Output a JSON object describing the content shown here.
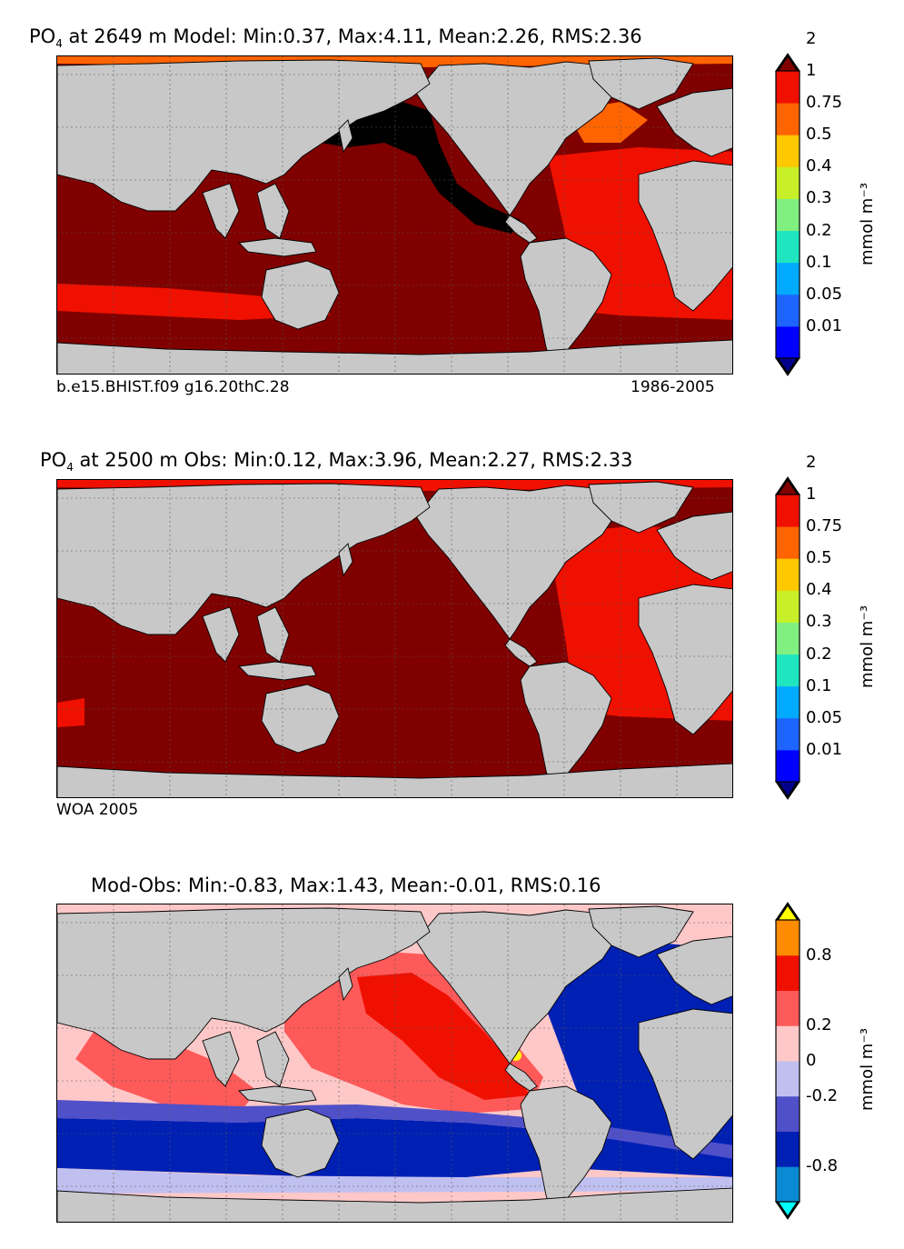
{
  "chart_data": [
    {
      "type": "heatmap",
      "title_prefix": "PO",
      "title_sub": "4",
      "title_rest": " at 2649 m Model: Min:0.37, Max:4.11, Mean:2.26, RMS:2.36",
      "stats": {
        "min": 0.37,
        "max": 4.11,
        "mean": 2.26,
        "rms": 2.36
      },
      "caption_left": "b.e15.BHIST.f09 g16.20thC.28",
      "caption_right": "1986-2005",
      "colorbar": {
        "levels": [
          "0.01",
          "0.05",
          "0.1",
          "0.2",
          "0.3",
          "0.4",
          "0.5",
          "0.75",
          "1",
          "2"
        ],
        "colors": [
          "#00008b",
          "#0000ff",
          "#1e64ff",
          "#00aaff",
          "#20e6c0",
          "#80f080",
          "#c8f028",
          "#ffc800",
          "#ff6400",
          "#f01000",
          "#800000"
        ],
        "unit": "mmol m⁻³"
      }
    },
    {
      "type": "heatmap",
      "title_prefix": "PO",
      "title_sub": "4",
      "title_rest": " at 2500 m Obs: Min:0.12, Max:3.96, Mean:2.27, RMS:2.33",
      "stats": {
        "min": 0.12,
        "max": 3.96,
        "mean": 2.27,
        "rms": 2.33
      },
      "caption_left": "WOA 2005",
      "caption_right": "",
      "colorbar": {
        "levels": [
          "0.01",
          "0.05",
          "0.1",
          "0.2",
          "0.3",
          "0.4",
          "0.5",
          "0.75",
          "1",
          "2"
        ],
        "colors": [
          "#00008b",
          "#0000ff",
          "#1e64ff",
          "#00aaff",
          "#20e6c0",
          "#80f080",
          "#c8f028",
          "#ffc800",
          "#ff6400",
          "#f01000",
          "#800000"
        ],
        "unit": "mmol m⁻³"
      }
    },
    {
      "type": "heatmap",
      "title_prefix": "",
      "title_sub": "",
      "title_rest": "Mod-Obs: Min:-0.83, Max:1.43, Mean:-0.01, RMS:0.16",
      "stats": {
        "min": -0.83,
        "max": 1.43,
        "mean": -0.01,
        "rms": 0.16
      },
      "caption_left": "",
      "caption_right": "",
      "colorbar": {
        "tick_labels": [
          "-0.8",
          "-0.2",
          "0",
          "0.2",
          "0.8"
        ],
        "colors": [
          "#00ffff",
          "#0a8ad2",
          "#0020b4",
          "#5050c8",
          "#c0c0f0",
          "#ffc8c8",
          "#ff5a5a",
          "#f01000",
          "#ff8c00",
          "#ffff00"
        ],
        "unit": "mmol m⁻³"
      }
    }
  ]
}
